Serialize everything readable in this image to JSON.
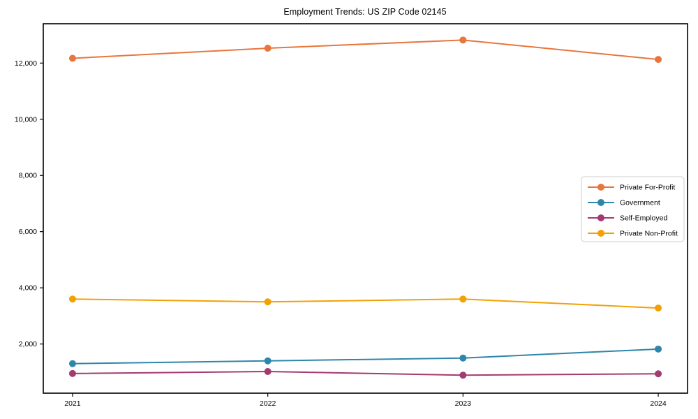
{
  "chart_data": {
    "type": "line",
    "title": "Employment Trends: US ZIP Code 02145",
    "xlabel": "",
    "ylabel": "",
    "x": [
      2021,
      2022,
      2023,
      2024
    ],
    "xticks": [
      {
        "v": 2021,
        "label": "2021"
      },
      {
        "v": 2022,
        "label": "2022"
      },
      {
        "v": 2023,
        "label": "2023"
      },
      {
        "v": 2024,
        "label": "2024"
      }
    ],
    "yticks": [
      {
        "v": 2000,
        "label": "2,000"
      },
      {
        "v": 4000,
        "label": "4,000"
      },
      {
        "v": 6000,
        "label": "6,000"
      },
      {
        "v": 8000,
        "label": "8,000"
      },
      {
        "v": 10000,
        "label": "10,000"
      },
      {
        "v": 12000,
        "label": "12,000"
      }
    ],
    "xlim": [
      2020.85,
      2024.15
    ],
    "ylim": [
      250,
      13400
    ],
    "grid": false,
    "legend_position": "center-right",
    "series": [
      {
        "name": "Private For-Profit",
        "color": "#E8763C",
        "values": [
          12170,
          12530,
          12820,
          12130
        ]
      },
      {
        "name": "Government",
        "color": "#2E86AB",
        "values": [
          1300,
          1400,
          1500,
          1820
        ]
      },
      {
        "name": "Self-Employed",
        "color": "#A23B72",
        "values": [
          950,
          1020,
          890,
          940
        ]
      },
      {
        "name": "Private Non-Profit",
        "color": "#F2A104",
        "values": [
          3600,
          3500,
          3600,
          3280
        ]
      }
    ]
  },
  "colors": {
    "axis": "#000000",
    "background": "#ffffff",
    "legend_border": "#cccccc"
  }
}
